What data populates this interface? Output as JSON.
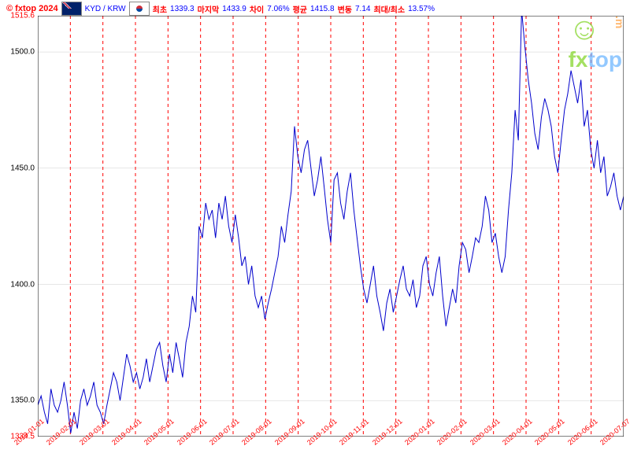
{
  "copyright": "© fxtop 2024",
  "pair": "KYD / KRW",
  "stats": {
    "first_label": "최초",
    "first_value": "1339.3",
    "last_label": "마지막",
    "last_value": "1433.9",
    "diff_label": "차이",
    "diff_value": "7.06%",
    "avg_label": "평균",
    "avg_value": "1415.8",
    "vol_label": "변동",
    "vol_value": "7.14",
    "range_label": "최대/최소",
    "range_value": "13.57%"
  },
  "watermark": {
    "fx": "fx",
    "top": "top",
    "m": ".m"
  },
  "chart": {
    "type": "line",
    "ylim": [
      1334.5,
      1515.6
    ],
    "yticks": [
      1334.5,
      1350.0,
      1400.0,
      1450.0,
      1500.0,
      1515.6
    ],
    "xticks": [
      "2019-01-01",
      "2019-02-01",
      "2019-03-01",
      "2019-04-01",
      "2019-05-01",
      "2019-06-01",
      "2019-07-01",
      "2019-08-01",
      "2019-09-01",
      "2019-10-01",
      "2019-11-01",
      "2019-12-01",
      "2020-01-01",
      "2020-02-01",
      "2020-03-01",
      "2020-04-01",
      "2020-05-01",
      "2020-06-01",
      "2020-07-07"
    ],
    "line_color": "#0000cc",
    "grid_color": "#ff0000",
    "grid_dash": "4,4",
    "hgrid_color": "#cccccc",
    "background_color": "#ffffff",
    "line_width": 1,
    "data": [
      1348,
      1352,
      1345,
      1340,
      1355,
      1348,
      1345,
      1350,
      1358,
      1348,
      1336,
      1345,
      1338,
      1350,
      1355,
      1348,
      1352,
      1358,
      1348,
      1345,
      1340,
      1348,
      1355,
      1362,
      1358,
      1350,
      1360,
      1370,
      1365,
      1358,
      1362,
      1355,
      1360,
      1368,
      1358,
      1365,
      1372,
      1375,
      1365,
      1358,
      1370,
      1362,
      1375,
      1368,
      1360,
      1375,
      1382,
      1395,
      1388,
      1425,
      1420,
      1435,
      1428,
      1432,
      1420,
      1435,
      1428,
      1438,
      1425,
      1418,
      1430,
      1420,
      1408,
      1412,
      1400,
      1408,
      1395,
      1390,
      1395,
      1385,
      1392,
      1398,
      1405,
      1412,
      1425,
      1418,
      1430,
      1440,
      1468,
      1455,
      1448,
      1458,
      1462,
      1450,
      1438,
      1445,
      1455,
      1442,
      1428,
      1418,
      1445,
      1448,
      1435,
      1428,
      1440,
      1448,
      1432,
      1420,
      1408,
      1398,
      1392,
      1400,
      1408,
      1395,
      1388,
      1380,
      1392,
      1398,
      1388,
      1395,
      1402,
      1408,
      1398,
      1395,
      1402,
      1390,
      1395,
      1408,
      1412,
      1400,
      1395,
      1405,
      1412,
      1395,
      1382,
      1390,
      1398,
      1392,
      1408,
      1418,
      1415,
      1405,
      1412,
      1420,
      1418,
      1425,
      1438,
      1432,
      1418,
      1422,
      1412,
      1405,
      1412,
      1432,
      1448,
      1475,
      1462,
      1518,
      1502,
      1488,
      1478,
      1465,
      1458,
      1472,
      1480,
      1475,
      1468,
      1455,
      1448,
      1462,
      1475,
      1482,
      1492,
      1485,
      1478,
      1488,
      1468,
      1475,
      1458,
      1450,
      1462,
      1448,
      1455,
      1438,
      1442,
      1448,
      1438,
      1432,
      1438
    ]
  }
}
